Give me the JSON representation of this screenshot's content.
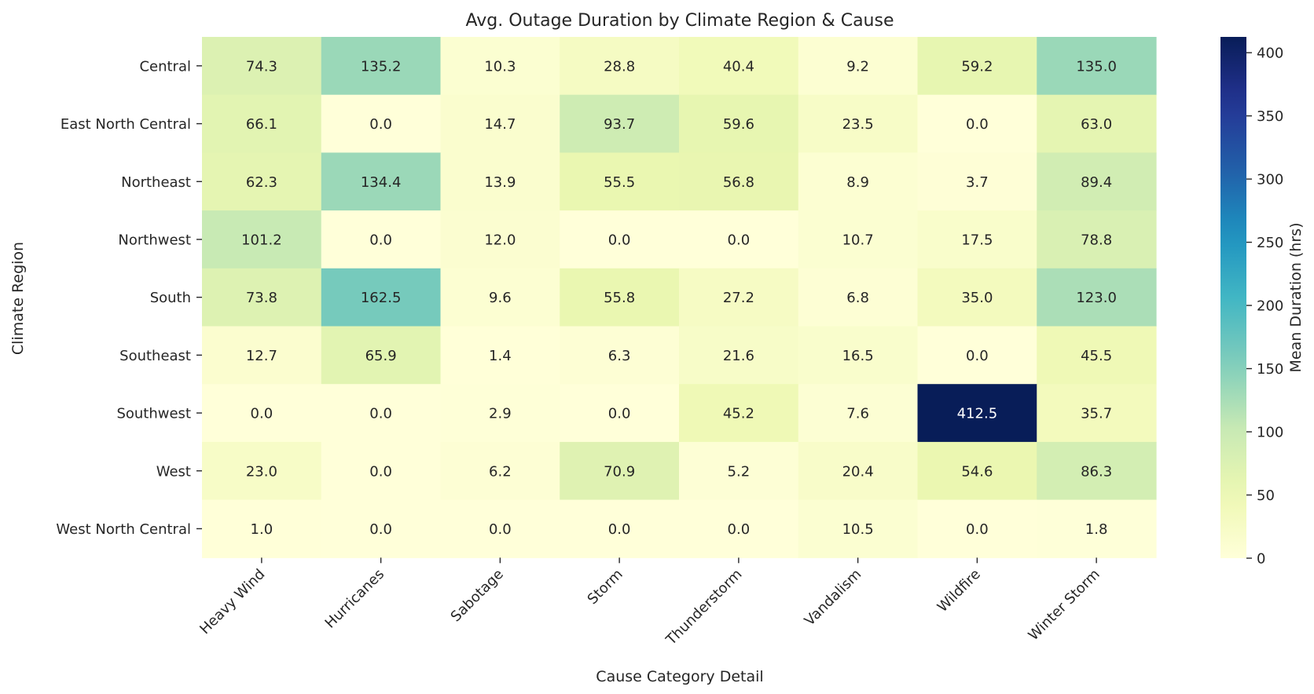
{
  "chart_data": {
    "type": "heatmap",
    "title": "Avg. Outage Duration by Climate Region & Cause",
    "xlabel": "Cause Category Detail",
    "ylabel": "Climate Region",
    "colorbar_label": "Mean Duration (hrs)",
    "colormap": "YlGnBu",
    "vmin": 0,
    "vmax": 412.5,
    "colorbar_ticks": [
      0,
      50,
      100,
      150,
      200,
      250,
      300,
      350,
      400
    ],
    "colorbar_tick_labels": [
      "0",
      "50",
      "100",
      "150",
      "200",
      "250",
      "300",
      "350",
      "400"
    ],
    "columns": [
      "Heavy Wind",
      "Hurricanes",
      "Sabotage",
      "Storm",
      "Thunderstorm",
      "Vandalism",
      "Wildfire",
      "Winter Storm"
    ],
    "rows": [
      "Central",
      "East North Central",
      "Northeast",
      "Northwest",
      "South",
      "Southeast",
      "Southwest",
      "West",
      "West North Central"
    ],
    "values": [
      [
        74.3,
        135.2,
        10.3,
        28.8,
        40.4,
        9.2,
        59.2,
        135.0
      ],
      [
        66.1,
        0.0,
        14.7,
        93.7,
        59.6,
        23.5,
        0.0,
        63.0
      ],
      [
        62.3,
        134.4,
        13.9,
        55.5,
        56.8,
        8.9,
        3.7,
        89.4
      ],
      [
        101.2,
        0.0,
        12.0,
        0.0,
        0.0,
        10.7,
        17.5,
        78.8
      ],
      [
        73.8,
        162.5,
        9.6,
        55.8,
        27.2,
        6.8,
        35.0,
        123.0
      ],
      [
        12.7,
        65.9,
        1.4,
        6.3,
        21.6,
        16.5,
        0.0,
        45.5
      ],
      [
        0.0,
        0.0,
        2.9,
        0.0,
        45.2,
        7.6,
        412.5,
        35.7
      ],
      [
        23.0,
        0.0,
        6.2,
        70.9,
        5.2,
        20.4,
        54.6,
        86.3
      ],
      [
        1.0,
        0.0,
        0.0,
        0.0,
        0.0,
        10.5,
        0.0,
        1.8
      ]
    ],
    "value_format": "0.0"
  }
}
